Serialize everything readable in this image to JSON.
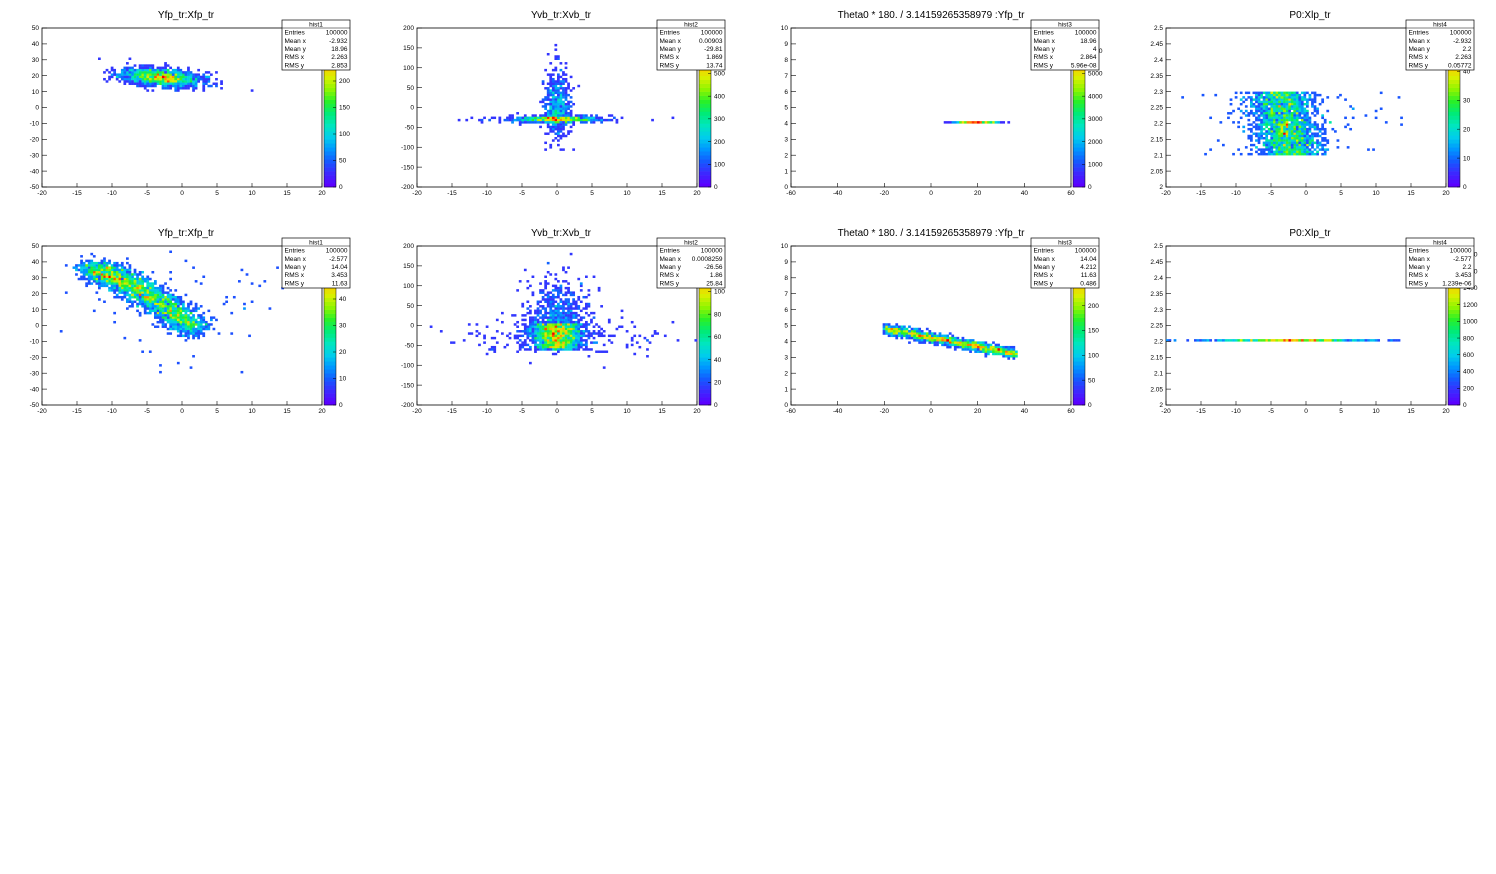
{
  "chart_data": [
    {
      "type": "heatmap",
      "name": "hist1",
      "title": "Yfp_tr:Xfp_tr",
      "xlim": [
        -20,
        20
      ],
      "ylim": [
        -50,
        50
      ],
      "xticks": [
        -20,
        -15,
        -10,
        -5,
        0,
        5,
        10,
        15,
        20
      ],
      "yticks": [
        -50,
        -40,
        -30,
        -20,
        -10,
        0,
        10,
        20,
        30,
        40,
        50
      ],
      "zlim": [
        0,
        300
      ],
      "zticks": [
        0,
        50,
        100,
        150,
        200,
        250
      ],
      "stats": [
        [
          "Entries",
          "100000"
        ],
        [
          "Mean x",
          "-2.932"
        ],
        [
          "Mean y",
          "18.96"
        ],
        [
          "RMS x",
          "2.263"
        ],
        [
          "RMS y",
          "2.853"
        ]
      ],
      "distribution": {
        "kind": "gauss2d",
        "mx": -2.932,
        "my": 18.96,
        "sx": 2.263,
        "sy": 2.853,
        "rho": -0.3,
        "n": 1500,
        "seed": 11
      }
    },
    {
      "type": "heatmap",
      "name": "hist2",
      "title": "Yvb_tr:Xvb_tr",
      "xlim": [
        -20,
        20
      ],
      "ylim": [
        -200,
        200
      ],
      "xticks": [
        -20,
        -15,
        -10,
        -5,
        0,
        5,
        10,
        15,
        20
      ],
      "yticks": [
        -200,
        -150,
        -100,
        -50,
        0,
        50,
        100,
        150,
        200
      ],
      "zlim": [
        0,
        700
      ],
      "zticks": [
        0,
        100,
        200,
        300,
        400,
        500,
        600
      ],
      "stats": [
        [
          "Entries",
          "100000"
        ],
        [
          "Mean x",
          "0.00903"
        ],
        [
          "Mean y",
          "-29.81"
        ],
        [
          "RMS x",
          "1.869"
        ],
        [
          "RMS y",
          "13.74"
        ]
      ],
      "distribution": {
        "kind": "cross",
        "mx": 0.00903,
        "my": -29.81,
        "sx": 1.869,
        "sy": 13.74,
        "n": 1300,
        "seed": 23
      }
    },
    {
      "type": "heatmap",
      "name": "hist3",
      "title": "Theta0 * 180. / 3.14159265358979 :Yfp_tr",
      "xlim": [
        -60,
        60
      ],
      "ylim": [
        0,
        10
      ],
      "xticks": [
        -60,
        -40,
        -20,
        0,
        20,
        40,
        60
      ],
      "yticks": [
        0,
        1,
        2,
        3,
        4,
        5,
        6,
        7,
        8,
        9,
        10
      ],
      "zlim": [
        0,
        7000
      ],
      "zticks": [
        0,
        1000,
        2000,
        3000,
        4000,
        5000,
        6000
      ],
      "stats": [
        [
          "Entries",
          "100000"
        ],
        [
          "Mean x",
          "18.96"
        ],
        [
          "Mean y",
          "4"
        ],
        [
          "RMS x",
          "2.864"
        ],
        [
          "RMS y",
          "5.96e-08"
        ]
      ],
      "distribution": {
        "kind": "hline",
        "mx": 18.96,
        "my": 4,
        "sx": 2.864,
        "n": 300,
        "seed": 31
      }
    },
    {
      "type": "heatmap",
      "name": "hist4",
      "title": "P0:Xlp_tr",
      "xlim": [
        -20,
        20
      ],
      "ylim": [
        2,
        2.5
      ],
      "xticks": [
        -20,
        -15,
        -10,
        -5,
        0,
        5,
        10,
        15,
        20
      ],
      "yticks": [
        2,
        2.05,
        2.1,
        2.15,
        2.2,
        2.25,
        2.3,
        2.35,
        2.4,
        2.45,
        2.5
      ],
      "zlim": [
        0,
        55
      ],
      "zticks": [
        0,
        10,
        20,
        30,
        40,
        50
      ],
      "stats": [
        [
          "Entries",
          "100000"
        ],
        [
          "Mean x",
          "-2.932"
        ],
        [
          "Mean y",
          "2.2"
        ],
        [
          "RMS x",
          "2.263"
        ],
        [
          "RMS y",
          "0.05772"
        ]
      ],
      "distribution": {
        "kind": "band",
        "mx": -2.932,
        "my": 2.2,
        "sx": 2.263,
        "y0": 2.1,
        "y1": 2.3,
        "slope": -0.035,
        "n": 2200,
        "seed": 47
      }
    },
    {
      "type": "heatmap",
      "name": "hist1",
      "title": "Yfp_tr:Xfp_tr",
      "xlim": [
        -20,
        20
      ],
      "ylim": [
        -50,
        50
      ],
      "xticks": [
        -20,
        -15,
        -10,
        -5,
        0,
        5,
        10,
        15,
        20
      ],
      "yticks": [
        -50,
        -40,
        -30,
        -20,
        -10,
        0,
        10,
        20,
        30,
        40,
        50
      ],
      "zlim": [
        0,
        60
      ],
      "zticks": [
        0,
        10,
        20,
        30,
        40,
        50
      ],
      "stats": [
        [
          "Entries",
          "100000"
        ],
        [
          "Mean x",
          "-2.577"
        ],
        [
          "Mean y",
          "14.04"
        ],
        [
          "RMS x",
          "3.453"
        ],
        [
          "RMS y",
          "11.63"
        ]
      ],
      "distribution": {
        "kind": "curve",
        "mx": -2.577,
        "my": 14.04,
        "sx": 3.453,
        "sy": 11.63,
        "n": 2600,
        "seed": 53
      }
    },
    {
      "type": "heatmap",
      "name": "hist2",
      "title": "Yvb_tr:Xvb_tr",
      "xlim": [
        -20,
        20
      ],
      "ylim": [
        -200,
        200
      ],
      "xticks": [
        -20,
        -15,
        -10,
        -5,
        0,
        5,
        10,
        15,
        20
      ],
      "yticks": [
        -200,
        -150,
        -100,
        -50,
        0,
        50,
        100,
        150,
        200
      ],
      "zlim": [
        0,
        140
      ],
      "zticks": [
        0,
        20,
        40,
        60,
        80,
        100,
        120
      ],
      "stats": [
        [
          "Entries",
          "100000"
        ],
        [
          "Mean x",
          "0.0008259"
        ],
        [
          "Mean y",
          "-26.56"
        ],
        [
          "RMS x",
          "1.86"
        ],
        [
          "RMS y",
          "25.84"
        ]
      ],
      "distribution": {
        "kind": "block",
        "mx": 0.0008259,
        "my": -26.56,
        "sx": 1.86,
        "sy": 25.84,
        "n": 2600,
        "seed": 61
      }
    },
    {
      "type": "heatmap",
      "name": "hist3",
      "title": "Theta0 * 180. / 3.14159265358979 :Yfp_tr",
      "xlim": [
        -60,
        60
      ],
      "ylim": [
        0,
        10
      ],
      "xticks": [
        -60,
        -40,
        -20,
        0,
        20,
        40,
        60
      ],
      "yticks": [
        0,
        1,
        2,
        3,
        4,
        5,
        6,
        7,
        8,
        9,
        10
      ],
      "zlim": [
        0,
        320
      ],
      "zticks": [
        0,
        50,
        100,
        150,
        200,
        250,
        300
      ],
      "stats": [
        [
          "Entries",
          "100000"
        ],
        [
          "Mean x",
          "14.04"
        ],
        [
          "Mean y",
          "4.212"
        ],
        [
          "RMS x",
          "11.63"
        ],
        [
          "RMS y",
          "0.486"
        ]
      ],
      "distribution": {
        "kind": "diag",
        "mx": 14.04,
        "my": 4.212,
        "sx": 11.63,
        "sy": 0.486,
        "n": 1500,
        "seed": 71
      }
    },
    {
      "type": "heatmap",
      "name": "hist4",
      "title": "P0:Xlp_tr",
      "xlim": [
        -20,
        20
      ],
      "ylim": [
        2,
        2.5
      ],
      "xticks": [
        -20,
        -15,
        -10,
        -5,
        0,
        5,
        10,
        15,
        20
      ],
      "yticks": [
        2,
        2.05,
        2.1,
        2.15,
        2.2,
        2.25,
        2.3,
        2.35,
        2.4,
        2.45,
        2.5
      ],
      "zlim": [
        0,
        1900
      ],
      "zticks": [
        0,
        200,
        400,
        600,
        800,
        1000,
        1200,
        1400,
        1600,
        1800
      ],
      "stats": [
        [
          "Entries",
          "100000"
        ],
        [
          "Mean x",
          "-2.577"
        ],
        [
          "Mean y",
          "2.2"
        ],
        [
          "RMS x",
          "3.453"
        ],
        [
          "RMS y",
          "1.239e-06"
        ]
      ],
      "distribution": {
        "kind": "hline",
        "mx": -2.577,
        "my": 2.2,
        "sx": 3.453,
        "n": 420,
        "seed": 83
      }
    }
  ]
}
